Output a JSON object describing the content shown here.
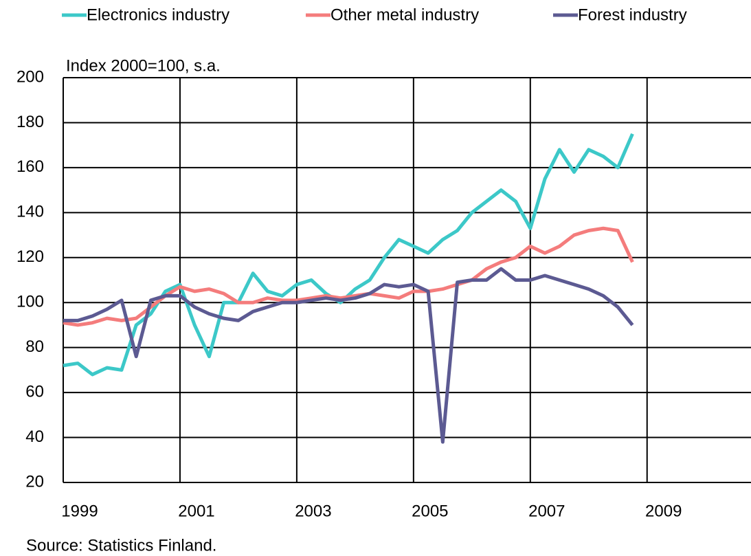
{
  "chart_data": {
    "type": "line",
    "ylabel": "Index 2000=100, s.a.",
    "source": "Source: Statistics Finland.",
    "x": [
      1999,
      1999.25,
      1999.5,
      1999.75,
      2000,
      2000.25,
      2000.5,
      2000.75,
      2001,
      2001.25,
      2001.5,
      2001.75,
      2002,
      2002.25,
      2002.5,
      2002.75,
      2003,
      2003.25,
      2003.5,
      2003.75,
      2004,
      2004.25,
      2004.5,
      2004.75,
      2005,
      2005.25,
      2005.5,
      2005.75,
      2006,
      2006.25,
      2006.5,
      2006.75,
      2007,
      2007.25,
      2007.5,
      2007.75,
      2008,
      2008.25,
      2008.5,
      2008.75
    ],
    "series": [
      {
        "name": "Electronics industry",
        "color": "#3cc8c8",
        "values": [
          72,
          73,
          68,
          71,
          70,
          90,
          95,
          105,
          108,
          90,
          76,
          100,
          100,
          113,
          105,
          103,
          108,
          110,
          104,
          100,
          106,
          110,
          120,
          128,
          125,
          122,
          128,
          132,
          140,
          145,
          150,
          145,
          133,
          155,
          168,
          158,
          168,
          165,
          160,
          175
        ]
      },
      {
        "name": "Other metal industry",
        "color": "#f47c7c",
        "values": [
          91,
          90,
          91,
          93,
          92,
          93,
          98,
          103,
          107,
          105,
          106,
          104,
          100,
          100,
          102,
          101,
          101,
          102,
          103,
          102,
          103,
          104,
          103,
          102,
          105,
          105,
          106,
          108,
          110,
          115,
          118,
          120,
          125,
          122,
          125,
          130,
          132,
          133,
          132,
          118
        ]
      },
      {
        "name": "Forest industry",
        "color": "#5c5a92",
        "values": [
          92,
          92,
          94,
          97,
          101,
          76,
          101,
          103,
          103,
          98,
          95,
          93,
          92,
          96,
          98,
          100,
          100,
          101,
          102,
          101,
          102,
          104,
          108,
          107,
          108,
          105,
          38,
          109,
          110,
          110,
          115,
          110,
          110,
          112,
          110,
          108,
          106,
          103,
          98,
          90
        ]
      }
    ],
    "xlim": [
      1999,
      2010.78
    ],
    "xticks": [
      1999,
      2001,
      2003,
      2005,
      2007,
      2009
    ],
    "ylim": [
      20,
      200
    ],
    "yticks": [
      20,
      40,
      60,
      80,
      100,
      120,
      140,
      160,
      180,
      200
    ],
    "grid": true
  }
}
